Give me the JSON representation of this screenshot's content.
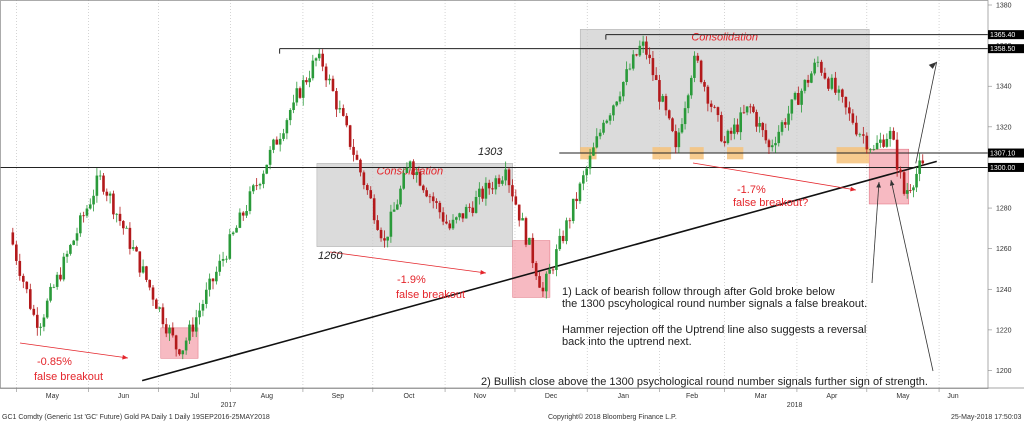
{
  "chart_data": {
    "type": "candlestick",
    "footer": {
      "left": "GC1 Comdty (Generic 1st 'GC' Future) Gold PA Daily 1  Daily 19SEP2016-25MAY2018",
      "center": "Copyright© 2018 Bloomberg Finance L.P.",
      "right": "25-May-2018 17:50:03"
    },
    "x_ticks": [
      {
        "label": "May",
        "date": "2017-05-01"
      },
      {
        "label": "Jun",
        "date": "2017-06-01"
      },
      {
        "label": "Jul",
        "date": "2017-07-01"
      },
      {
        "label": "Aug",
        "date": "2017-08-01"
      },
      {
        "label": "Sep",
        "date": "2017-09-01"
      },
      {
        "label": "Oct",
        "date": "2017-10-01"
      },
      {
        "label": "Nov",
        "date": "2017-11-01"
      },
      {
        "label": "Dec",
        "date": "2017-12-01"
      },
      {
        "label": "Jan",
        "date": "2018-01-01"
      },
      {
        "label": "Feb",
        "date": "2018-02-01"
      },
      {
        "label": "Mar",
        "date": "2018-03-01"
      },
      {
        "label": "Apr",
        "date": "2018-04-01"
      },
      {
        "label": "May",
        "date": "2018-05-01"
      },
      {
        "label": "Jun",
        "date": "2018-06-01"
      }
    ],
    "year_labels": [
      {
        "label": "2017",
        "date": "2017-07-31"
      },
      {
        "label": "2018",
        "date": "2018-03-31"
      }
    ],
    "y_axis": {
      "min": 1192,
      "max": 1382,
      "ticks": [
        1200,
        1220,
        1240,
        1260,
        1280,
        1300,
        1320,
        1340,
        1360,
        1380
      ],
      "position": "right"
    },
    "grid": "dotted vertical at month starts",
    "price_tags": [
      {
        "label": "1365.40",
        "value": 1365.4,
        "color": "#000000"
      },
      {
        "label": "1358.50",
        "value": 1358.5,
        "color": "#000000"
      },
      {
        "label": "1307.10",
        "value": 1307.1,
        "color": "#000000"
      },
      {
        "label": "1300.00",
        "value": 1300.0,
        "color": "#000000"
      }
    ],
    "horizontal_lines": [
      {
        "value": 1365.4,
        "from": "2018-01-09",
        "to": "2018-05-31"
      },
      {
        "value": 1358.5,
        "from": "2017-08-22",
        "to": "2018-05-31"
      },
      {
        "value": 1307.1,
        "from": "2017-12-20",
        "to": "2018-05-31"
      },
      {
        "value": 1300.0,
        "from": "2017-04-20",
        "to": "2018-05-31"
      }
    ],
    "trendline": {
      "from": {
        "date": "2017-06-24",
        "value": 1195
      },
      "to": {
        "date": "2018-05-31",
        "value": 1303
      }
    },
    "arrow_up": {
      "from": {
        "date": "2018-05-22",
        "value": 1302
      },
      "to": {
        "date": "2018-05-31",
        "value": 1352
      }
    },
    "segments": [
      {
        "from": "2017-04-28",
        "to": "2017-05-10",
        "open": 1268,
        "close": 1221,
        "low": 1214,
        "high": 1270
      },
      {
        "from": "2017-05-10",
        "to": "2017-06-06",
        "open": 1221,
        "close": 1296,
        "low": 1218,
        "high": 1297
      },
      {
        "from": "2017-06-06",
        "to": "2017-07-10",
        "open": 1296,
        "close": 1208,
        "low": 1204,
        "high": 1298
      },
      {
        "from": "2017-07-10",
        "to": "2017-08-28",
        "open": 1208,
        "close": 1332,
        "low": 1205,
        "high": 1335
      },
      {
        "from": "2017-08-28",
        "to": "2017-09-08",
        "open": 1332,
        "close": 1356,
        "low": 1330,
        "high": 1358
      },
      {
        "from": "2017-09-08",
        "to": "2017-10-06",
        "open": 1356,
        "close": 1264,
        "low": 1261,
        "high": 1358
      },
      {
        "from": "2017-10-06",
        "to": "2017-10-17",
        "open": 1264,
        "close": 1303,
        "low": 1262,
        "high": 1306
      },
      {
        "from": "2017-10-17",
        "to": "2017-11-03",
        "open": 1303,
        "close": 1270,
        "low": 1265,
        "high": 1305
      },
      {
        "from": "2017-11-03",
        "to": "2017-11-27",
        "open": 1270,
        "close": 1299,
        "low": 1268,
        "high": 1302
      },
      {
        "from": "2017-11-27",
        "to": "2017-12-13",
        "open": 1299,
        "close": 1239,
        "low": 1236,
        "high": 1300
      },
      {
        "from": "2017-12-13",
        "to": "2018-01-08",
        "open": 1239,
        "close": 1322,
        "low": 1237,
        "high": 1324
      },
      {
        "from": "2018-01-08",
        "to": "2018-01-25",
        "open": 1322,
        "close": 1362,
        "low": 1318,
        "high": 1366
      },
      {
        "from": "2018-01-25",
        "to": "2018-02-08",
        "open": 1362,
        "close": 1310,
        "low": 1307,
        "high": 1364
      },
      {
        "from": "2018-02-08",
        "to": "2018-02-16",
        "open": 1310,
        "close": 1355,
        "low": 1308,
        "high": 1358
      },
      {
        "from": "2018-02-16",
        "to": "2018-03-01",
        "open": 1355,
        "close": 1312,
        "low": 1308,
        "high": 1356
      },
      {
        "from": "2018-03-01",
        "to": "2018-03-12",
        "open": 1312,
        "close": 1330,
        "low": 1309,
        "high": 1333
      },
      {
        "from": "2018-03-12",
        "to": "2018-03-20",
        "open": 1330,
        "close": 1310,
        "low": 1307,
        "high": 1332
      },
      {
        "from": "2018-03-20",
        "to": "2018-04-10",
        "open": 1310,
        "close": 1352,
        "low": 1308,
        "high": 1356
      },
      {
        "from": "2018-04-10",
        "to": "2018-04-25",
        "open": 1352,
        "close": 1322,
        "low": 1320,
        "high": 1358
      },
      {
        "from": "2018-04-25",
        "to": "2018-05-04",
        "open": 1322,
        "close": 1309,
        "low": 1304,
        "high": 1324
      },
      {
        "from": "2018-05-04",
        "to": "2018-05-11",
        "open": 1309,
        "close": 1318,
        "low": 1305,
        "high": 1321
      },
      {
        "from": "2018-05-11",
        "to": "2018-05-17",
        "open": 1318,
        "close": 1287,
        "low": 1284,
        "high": 1320
      },
      {
        "from": "2018-05-17",
        "to": "2018-05-25",
        "open": 1287,
        "close": 1302,
        "low": 1282,
        "high": 1306
      }
    ],
    "consolidation_boxes": [
      {
        "label": "Consolidation",
        "from": "2017-09-07",
        "to": "2017-11-30",
        "low": 1261,
        "high": 1302
      },
      {
        "label": "Consolidation",
        "from": "2017-12-29",
        "to": "2018-05-02",
        "low": 1307,
        "high": 1368
      }
    ],
    "breakout_boxes": [
      {
        "from": "2017-07-02",
        "to": "2017-07-18",
        "low": 1206,
        "high": 1221
      },
      {
        "from": "2017-11-30",
        "to": "2017-12-16",
        "low": 1236,
        "high": 1264
      },
      {
        "from": "2018-05-02",
        "to": "2018-05-19",
        "low": 1282,
        "high": 1309
      }
    ],
    "orange_boxes": [
      {
        "from": "2017-12-29",
        "to": "2018-01-05",
        "low": 1304,
        "high": 1310
      },
      {
        "from": "2018-01-29",
        "to": "2018-02-06",
        "low": 1304,
        "high": 1310
      },
      {
        "from": "2018-02-14",
        "to": "2018-02-20",
        "low": 1304,
        "high": 1310
      },
      {
        "from": "2018-03-02",
        "to": "2018-03-09",
        "low": 1304,
        "high": 1310
      },
      {
        "from": "2018-04-18",
        "to": "2018-05-02",
        "low": 1302,
        "high": 1310
      }
    ]
  },
  "annotations": {
    "level_1303": "1303",
    "level_1260": "1260",
    "breakout_1_pct": "-0.85%",
    "breakout_1_text": "false breakout",
    "breakout_2_pct": "-1.9%",
    "breakout_2_text": "false breakout",
    "breakout_3_pct": "-1.7%",
    "breakout_3_text": "false breakout?",
    "note1_line1": "1) Lack of bearish follow through after Gold broke below",
    "note1_line2": "the 1300 pscyhological round number signals a false breakout.",
    "note2_line1": "Hammer rejection off the Uptrend line also suggests a reversal",
    "note2_line2": "back into the uptrend next.",
    "note3": "2) Bullish close above the 1300 psychological round number signals further sign of strength."
  },
  "colors": {
    "bull": "#2a9a3a",
    "bear": "#b3191b",
    "consolidation_fill": "#cccccc",
    "breakout_fill": "#f4a3ad",
    "orange_fill": "#f6c27a",
    "annotation_red": "#e4252b"
  }
}
